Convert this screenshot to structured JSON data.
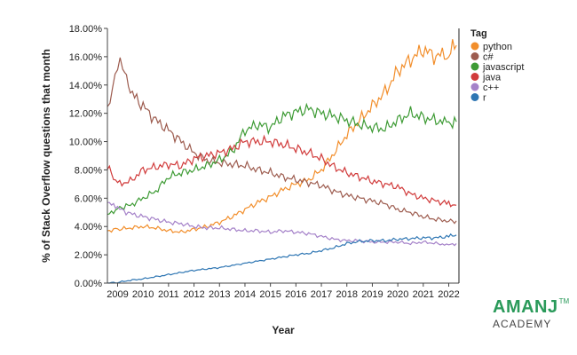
{
  "chart_data": {
    "type": "line",
    "title": "",
    "xlabel": "Year",
    "ylabel": "% of Stack Overflow questions that month",
    "xlim": [
      2008.6,
      2022.4
    ],
    "ylim": [
      0,
      18
    ],
    "y_ticks": [
      "0.00%",
      "2.00%",
      "4.00%",
      "6.00%",
      "8.00%",
      "10.00%",
      "12.00%",
      "14.00%",
      "16.00%",
      "18.00%"
    ],
    "y_tick_values": [
      0,
      2,
      4,
      6,
      8,
      10,
      12,
      14,
      16,
      18
    ],
    "x_ticks": [
      "2009",
      "2010",
      "2011",
      "2012",
      "2013",
      "2014",
      "2015",
      "2016",
      "2017",
      "2018",
      "2019",
      "2020",
      "2021",
      "2022"
    ],
    "x_tick_values": [
      2009,
      2010,
      2011,
      2012,
      2013,
      2014,
      2015,
      2016,
      2017,
      2018,
      2019,
      2020,
      2021,
      2022
    ],
    "grid": false,
    "legend_title": "Tag",
    "legend_position": "right",
    "series": [
      {
        "name": "python",
        "color": "#f28e2b",
        "x": [
          2008.6,
          2009,
          2009.5,
          2010,
          2010.5,
          2011,
          2011.5,
          2012,
          2012.5,
          2013,
          2013.5,
          2014,
          2014.5,
          2015,
          2015.5,
          2016,
          2016.5,
          2017,
          2017.5,
          2018,
          2018.5,
          2019,
          2019.5,
          2020,
          2020.5,
          2021,
          2021.5,
          2022,
          2022.3
        ],
        "y": [
          3.7,
          3.8,
          3.9,
          4.0,
          3.9,
          3.7,
          3.6,
          3.8,
          4.0,
          4.3,
          4.7,
          5.2,
          5.7,
          6.1,
          6.6,
          7.0,
          7.3,
          8.0,
          9.2,
          10.5,
          11.5,
          12.5,
          13.5,
          15.0,
          15.8,
          16.5,
          16.0,
          16.3,
          16.8
        ]
      },
      {
        "name": "c#",
        "color": "#9d5c4f",
        "x": [
          2008.6,
          2008.8,
          2009,
          2009.2,
          2009.5,
          2010,
          2010.5,
          2011,
          2011.5,
          2012,
          2012.5,
          2013,
          2013.5,
          2014,
          2014.5,
          2015,
          2015.5,
          2016,
          2016.5,
          2017,
          2017.5,
          2018,
          2018.5,
          2019,
          2019.5,
          2020,
          2020.5,
          2021,
          2021.5,
          2022,
          2022.3
        ],
        "y": [
          12.0,
          14.0,
          15.3,
          15.6,
          13.5,
          12.5,
          11.5,
          10.8,
          10.0,
          9.2,
          8.7,
          8.5,
          8.4,
          8.3,
          8.0,
          7.8,
          7.5,
          7.3,
          7.1,
          6.9,
          6.5,
          6.2,
          6.0,
          5.8,
          5.6,
          5.2,
          5.0,
          4.7,
          4.5,
          4.4,
          4.4
        ]
      },
      {
        "name": "javascript",
        "color": "#3e9b35",
        "x": [
          2008.6,
          2009,
          2009.5,
          2010,
          2010.5,
          2011,
          2011.5,
          2012,
          2012.5,
          2013,
          2013.5,
          2014,
          2014.5,
          2015,
          2015.5,
          2016,
          2016.5,
          2017,
          2017.5,
          2018,
          2018.5,
          2019,
          2019.5,
          2020,
          2020.5,
          2021,
          2021.5,
          2022,
          2022.3
        ],
        "y": [
          4.8,
          5.3,
          5.5,
          6.0,
          6.5,
          7.5,
          7.8,
          8.0,
          8.3,
          8.7,
          9.3,
          10.8,
          11.2,
          11.0,
          11.8,
          12.1,
          12.3,
          12.0,
          11.8,
          11.5,
          11.2,
          11.0,
          10.9,
          11.5,
          12.0,
          11.7,
          11.5,
          11.3,
          11.4
        ]
      },
      {
        "name": "java",
        "color": "#d13b3b",
        "x": [
          2008.6,
          2009,
          2009.5,
          2010,
          2010.5,
          2011,
          2011.5,
          2012,
          2012.5,
          2013,
          2013.5,
          2014,
          2014.5,
          2015,
          2015.5,
          2016,
          2016.5,
          2017,
          2017.5,
          2018,
          2018.5,
          2019,
          2019.5,
          2020,
          2020.5,
          2021,
          2021.5,
          2022,
          2022.3
        ],
        "y": [
          8.2,
          7.0,
          7.2,
          8.0,
          8.2,
          8.4,
          8.3,
          8.8,
          9.0,
          9.2,
          9.5,
          10.0,
          10.0,
          10.0,
          9.8,
          9.5,
          9.2,
          8.8,
          8.2,
          7.8,
          7.5,
          7.2,
          7.0,
          6.8,
          6.3,
          6.0,
          5.8,
          5.6,
          5.5
        ]
      },
      {
        "name": "c++",
        "color": "#a582c9",
        "x": [
          2008.6,
          2009,
          2009.5,
          2010,
          2010.5,
          2011,
          2011.5,
          2012,
          2012.5,
          2013,
          2013.5,
          2014,
          2014.5,
          2015,
          2015.5,
          2016,
          2016.5,
          2017,
          2017.5,
          2018,
          2018.5,
          2019,
          2019.5,
          2020,
          2020.5,
          2021,
          2021.5,
          2022,
          2022.3
        ],
        "y": [
          5.7,
          5.3,
          4.9,
          4.7,
          4.5,
          4.3,
          4.2,
          4.0,
          3.9,
          3.9,
          3.8,
          3.7,
          3.7,
          3.6,
          3.7,
          3.6,
          3.5,
          3.3,
          3.1,
          3.0,
          3.0,
          2.9,
          2.9,
          2.9,
          2.8,
          2.9,
          2.8,
          2.7,
          2.8
        ]
      },
      {
        "name": "r",
        "color": "#2e76b3",
        "x": [
          2008.6,
          2009,
          2009.5,
          2010,
          2010.5,
          2011,
          2011.5,
          2012,
          2012.5,
          2013,
          2013.5,
          2014,
          2014.5,
          2015,
          2015.5,
          2016,
          2016.5,
          2017,
          2017.5,
          2018,
          2018.5,
          2019,
          2019.5,
          2020,
          2020.5,
          2021,
          2021.5,
          2022,
          2022.3
        ],
        "y": [
          0.0,
          0.05,
          0.2,
          0.3,
          0.45,
          0.6,
          0.75,
          0.9,
          1.0,
          1.1,
          1.25,
          1.4,
          1.55,
          1.7,
          1.85,
          2.0,
          2.1,
          2.3,
          2.5,
          2.8,
          2.95,
          3.0,
          3.0,
          3.1,
          3.15,
          3.2,
          3.2,
          3.3,
          3.4
        ]
      }
    ]
  },
  "logo": {
    "main": "AMANJ",
    "tm": "TM",
    "sub": "ACADEMY"
  }
}
